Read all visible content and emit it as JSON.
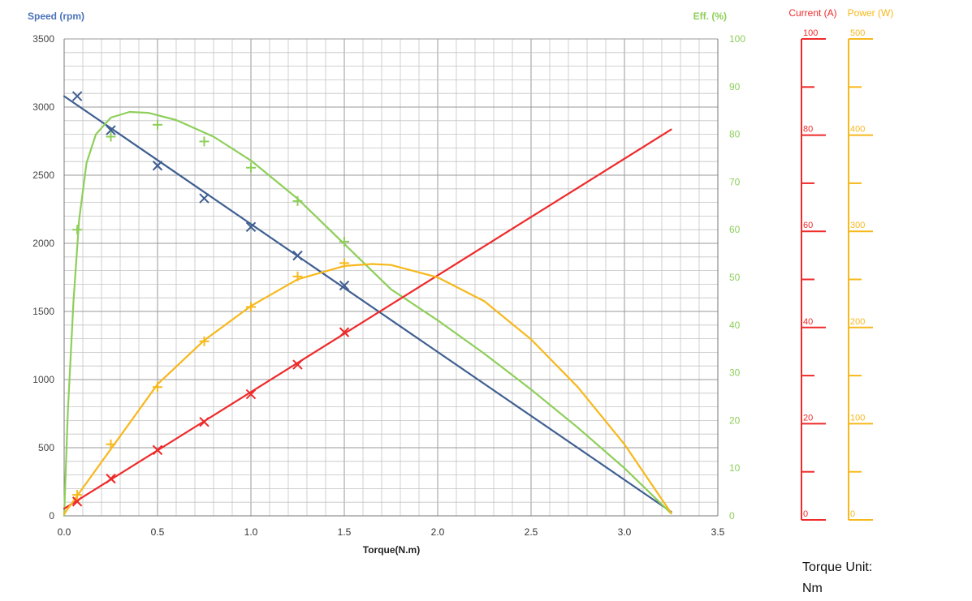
{
  "chart_data": {
    "type": "line",
    "xlabel": "Torque(N.m)",
    "xlim": [
      0,
      3.5
    ],
    "x_ticks": [
      "0.0",
      "0.5",
      "1.0",
      "1.5",
      "2.0",
      "2.5",
      "3.0",
      "3.5"
    ],
    "left_axis": {
      "label": "Speed (rpm)",
      "ylim": [
        0,
        3500
      ],
      "ticks": [
        "0",
        "500",
        "1000",
        "1500",
        "2000",
        "2500",
        "3000",
        "3500"
      ]
    },
    "right_axis": {
      "label": "Eff. (%)",
      "ylim": [
        0,
        100
      ],
      "ticks": [
        "0",
        "10",
        "20",
        "30",
        "40",
        "50",
        "60",
        "70",
        "80",
        "90",
        "100"
      ]
    },
    "current_axis": {
      "label": "Current (A)",
      "ylim": [
        0,
        100
      ],
      "ticks": [
        "0",
        "20",
        "40",
        "60",
        "80",
        "100"
      ]
    },
    "power_axis": {
      "label": "Power (W)",
      "ylim": [
        0,
        500
      ],
      "ticks": [
        "0",
        "100",
        "200",
        "300",
        "400",
        "500"
      ]
    },
    "grid": true,
    "series": [
      {
        "key": "speed",
        "axis": "left",
        "color": "#3f5f91",
        "marker": "x",
        "curve_x": [
          0,
          3.25
        ],
        "curve_y": [
          3080,
          30
        ],
        "points_x": [
          0.07,
          0.25,
          0.5,
          0.75,
          1.0,
          1.25,
          1.5
        ],
        "points_y": [
          3080,
          2830,
          2570,
          2330,
          2120,
          1910,
          1690
        ]
      },
      {
        "key": "efficiency",
        "axis": "right",
        "color": "#8ecf5a",
        "marker": "+",
        "curve_x": [
          0,
          0.02,
          0.05,
          0.08,
          0.12,
          0.17,
          0.25,
          0.35,
          0.45,
          0.6,
          0.8,
          1.0,
          1.25,
          1.5,
          1.75,
          2.0,
          2.25,
          2.5,
          2.75,
          3.0,
          3.25
        ],
        "curve_y": [
          0,
          22,
          45,
          62,
          74,
          80,
          83.5,
          84.7,
          84.5,
          83,
          79.5,
          74.5,
          66.5,
          57,
          47.5,
          41,
          34,
          26.5,
          18.5,
          10,
          0.5
        ],
        "points_x": [
          0.07,
          0.25,
          0.5,
          0.75,
          1.0,
          1.25,
          1.5
        ],
        "points_y": [
          60,
          79.5,
          82,
          78.5,
          73,
          66,
          57.5
        ]
      },
      {
        "key": "current",
        "axis": "current",
        "color": "#ef2a2a",
        "marker": "x",
        "curve_x": [
          0,
          3.25
        ],
        "curve_y": [
          1.5,
          81
        ],
        "points_x": [
          0.07,
          0.25,
          0.5,
          0.75,
          1.0,
          1.25,
          1.5
        ],
        "points_y": [
          3,
          7.8,
          13.8,
          19.7,
          25.5,
          31.7,
          38.5
        ]
      },
      {
        "key": "power",
        "axis": "power",
        "color": "#f7b81c",
        "marker": "+",
        "curve_x": [
          0,
          0.25,
          0.5,
          0.75,
          1.0,
          1.25,
          1.5,
          1.65,
          1.75,
          2.0,
          2.25,
          2.5,
          2.75,
          3.0,
          3.25
        ],
        "curve_y": [
          2,
          70,
          138,
          184,
          220,
          248,
          262,
          264,
          263,
          250,
          225,
          185,
          135,
          75,
          3
        ],
        "points_x": [
          0.07,
          0.25,
          0.5,
          0.75,
          1.0,
          1.25,
          1.5
        ],
        "points_y": [
          22,
          75,
          135,
          183,
          219,
          251,
          265
        ]
      }
    ]
  },
  "note": {
    "line1": "Torque Unit:",
    "line2": "Nm"
  }
}
